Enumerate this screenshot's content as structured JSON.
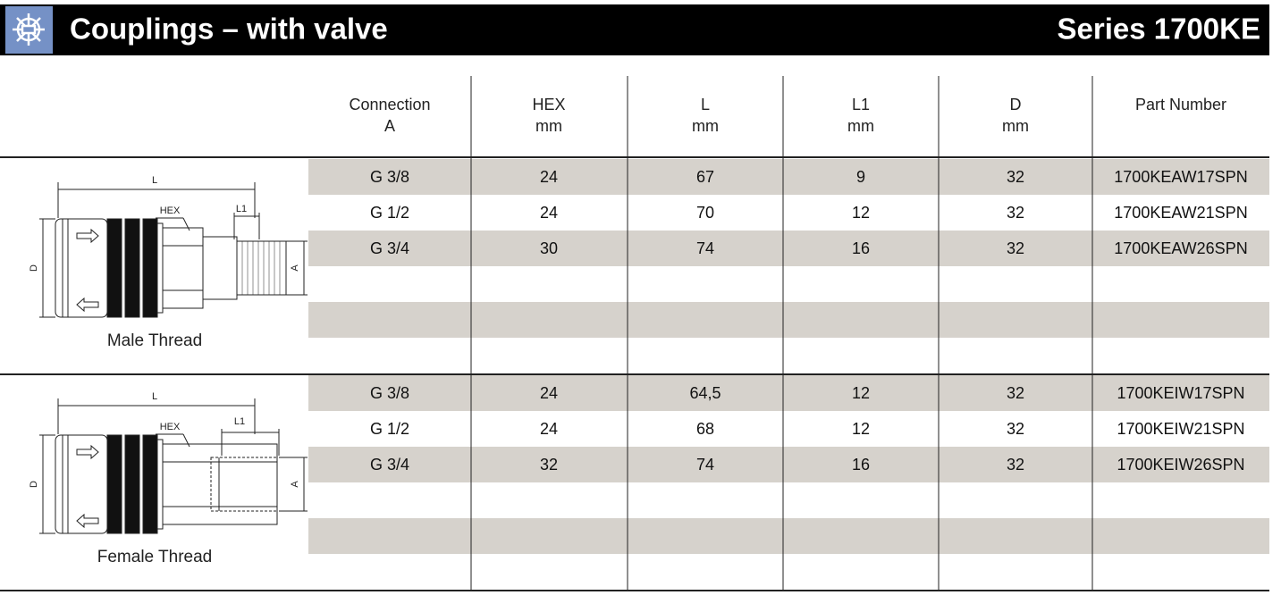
{
  "header": {
    "title": "Couplings – with valve",
    "series": "Series 1700KE"
  },
  "table": {
    "columns": [
      [
        "Connection",
        "A"
      ],
      [
        "HEX",
        "mm"
      ],
      [
        "L",
        "mm"
      ],
      [
        "L1",
        "mm"
      ],
      [
        "D",
        "mm"
      ],
      [
        "Part Number"
      ]
    ],
    "groups": [
      {
        "caption": "Male Thread",
        "dims": {
          "L": "L",
          "HEX": "HEX",
          "L1": "L1",
          "D": "D",
          "A": "A"
        },
        "rows": [
          [
            "G 3/8",
            24,
            67,
            9,
            32,
            "1700KEAW17SPN"
          ],
          [
            "G 1/2",
            24,
            70,
            12,
            32,
            "1700KEAW21SPN"
          ],
          [
            "G 3/4",
            30,
            74,
            16,
            32,
            "1700KEAW26SPN"
          ]
        ]
      },
      {
        "caption": "Female Thread",
        "dims": {
          "L": "L",
          "HEX": "HEX",
          "L1": "L1",
          "D": "D",
          "A": "A"
        },
        "rows": [
          [
            "G 3/8",
            24,
            "64,5",
            12,
            32,
            "1700KEIW17SPN"
          ],
          [
            "G 1/2",
            24,
            68,
            12,
            32,
            "1700KEIW21SPN"
          ],
          [
            "G 3/4",
            32,
            74,
            16,
            32,
            "1700KEIW26SPN"
          ]
        ]
      }
    ]
  }
}
